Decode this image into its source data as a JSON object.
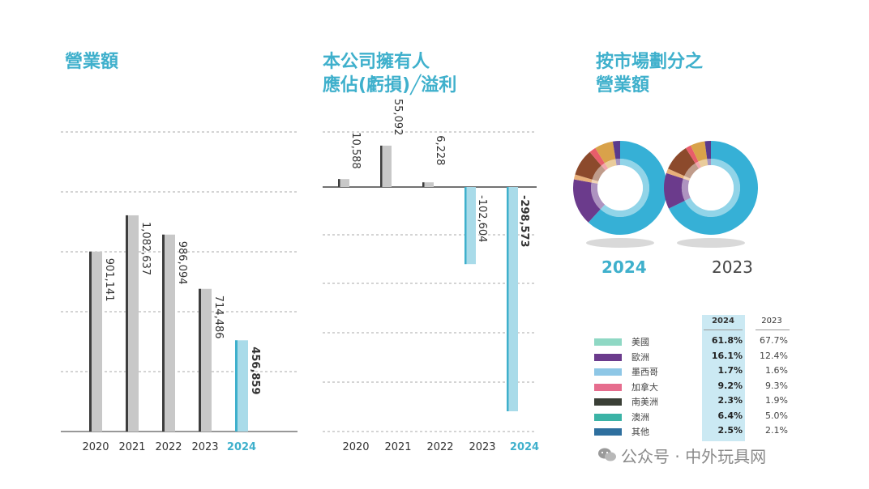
{
  "titles": {
    "revenue": "營業額",
    "profit_line1": "本公司擁有人",
    "profit_line2": "應佔(虧損)╱溢利",
    "market_line1": "按市場劃分之",
    "market_line2": "營業額"
  },
  "colors": {
    "accent": "#3fb0cc",
    "bar_gray": "#c8c8c8",
    "bar_dark_edge": "#3d3d3d",
    "bar_highlight": "#a9dbe9"
  },
  "chart_data": [
    {
      "type": "bar",
      "categories": [
        "2020",
        "2021",
        "2022",
        "2023",
        "2024"
      ],
      "values": [
        901141,
        1082637,
        986094,
        714486,
        456859
      ],
      "value_labels": [
        "901,141",
        "1,082,637",
        "986,094",
        "714,486",
        "456,859"
      ],
      "highlight_category": "2024",
      "ylim": [
        0,
        1500000
      ],
      "grid": "dashed horizontal"
    },
    {
      "type": "bar",
      "categories": [
        "2020",
        "2021",
        "2022",
        "2023",
        "2024"
      ],
      "values": [
        10588,
        55092,
        6228,
        -102604,
        -298573
      ],
      "value_labels": [
        "10,588",
        "55,092",
        "6,228",
        "-102,604",
        "-298,573"
      ],
      "highlight_category": "2024",
      "ylim": [
        -330000,
        70000
      ],
      "grid": "dashed horizontal"
    },
    {
      "type": "pie",
      "donuts": [
        {
          "label": "2024",
          "categories": [
            "美國",
            "歐洲",
            "墨西哥",
            "加拿大",
            "南美洲",
            "澳洲",
            "其他"
          ],
          "values": [
            61.8,
            16.1,
            1.7,
            9.2,
            2.3,
            6.4,
            2.5
          ]
        },
        {
          "label": "2023",
          "categories": [
            "美國",
            "歐洲",
            "墨西哥",
            "加拿大",
            "南美洲",
            "澳洲",
            "其他"
          ],
          "values": [
            67.7,
            12.4,
            1.6,
            9.3,
            1.9,
            5.0,
            2.1
          ]
        }
      ],
      "slice_colors": [
        "#36b0d6",
        "#8c4a2c",
        "#e6a96a",
        "#d9d86b",
        "#5a3a8c",
        "#4a2c6c",
        "#e85d6a"
      ]
    },
    {
      "type": "table",
      "columns": [
        "2024",
        "2023"
      ],
      "rows": [
        {
          "name": "美國",
          "color": "#8fd8c4",
          "v2024": "61.8%",
          "v2023": "67.7%"
        },
        {
          "name": "歐洲",
          "color": "#6b3b8c",
          "v2024": "16.1%",
          "v2023": "12.4%"
        },
        {
          "name": "墨西哥",
          "color": "#8ec7e6",
          "v2024": "1.7%",
          "v2023": "1.6%"
        },
        {
          "name": "加拿大",
          "color": "#e66d8e",
          "v2024": "9.2%",
          "v2023": "9.3%"
        },
        {
          "name": "南美洲",
          "color": "#3a3f36",
          "v2024": "2.3%",
          "v2023": "1.9%"
        },
        {
          "name": "澳洲",
          "color": "#3bb3a6",
          "v2024": "6.4%",
          "v2023": "5.0%"
        },
        {
          "name": "其他",
          "color": "#2e6f9e",
          "v2024": "2.5%",
          "v2023": "2.1%"
        }
      ]
    }
  ],
  "watermark": "公众号 · 中外玩具网"
}
